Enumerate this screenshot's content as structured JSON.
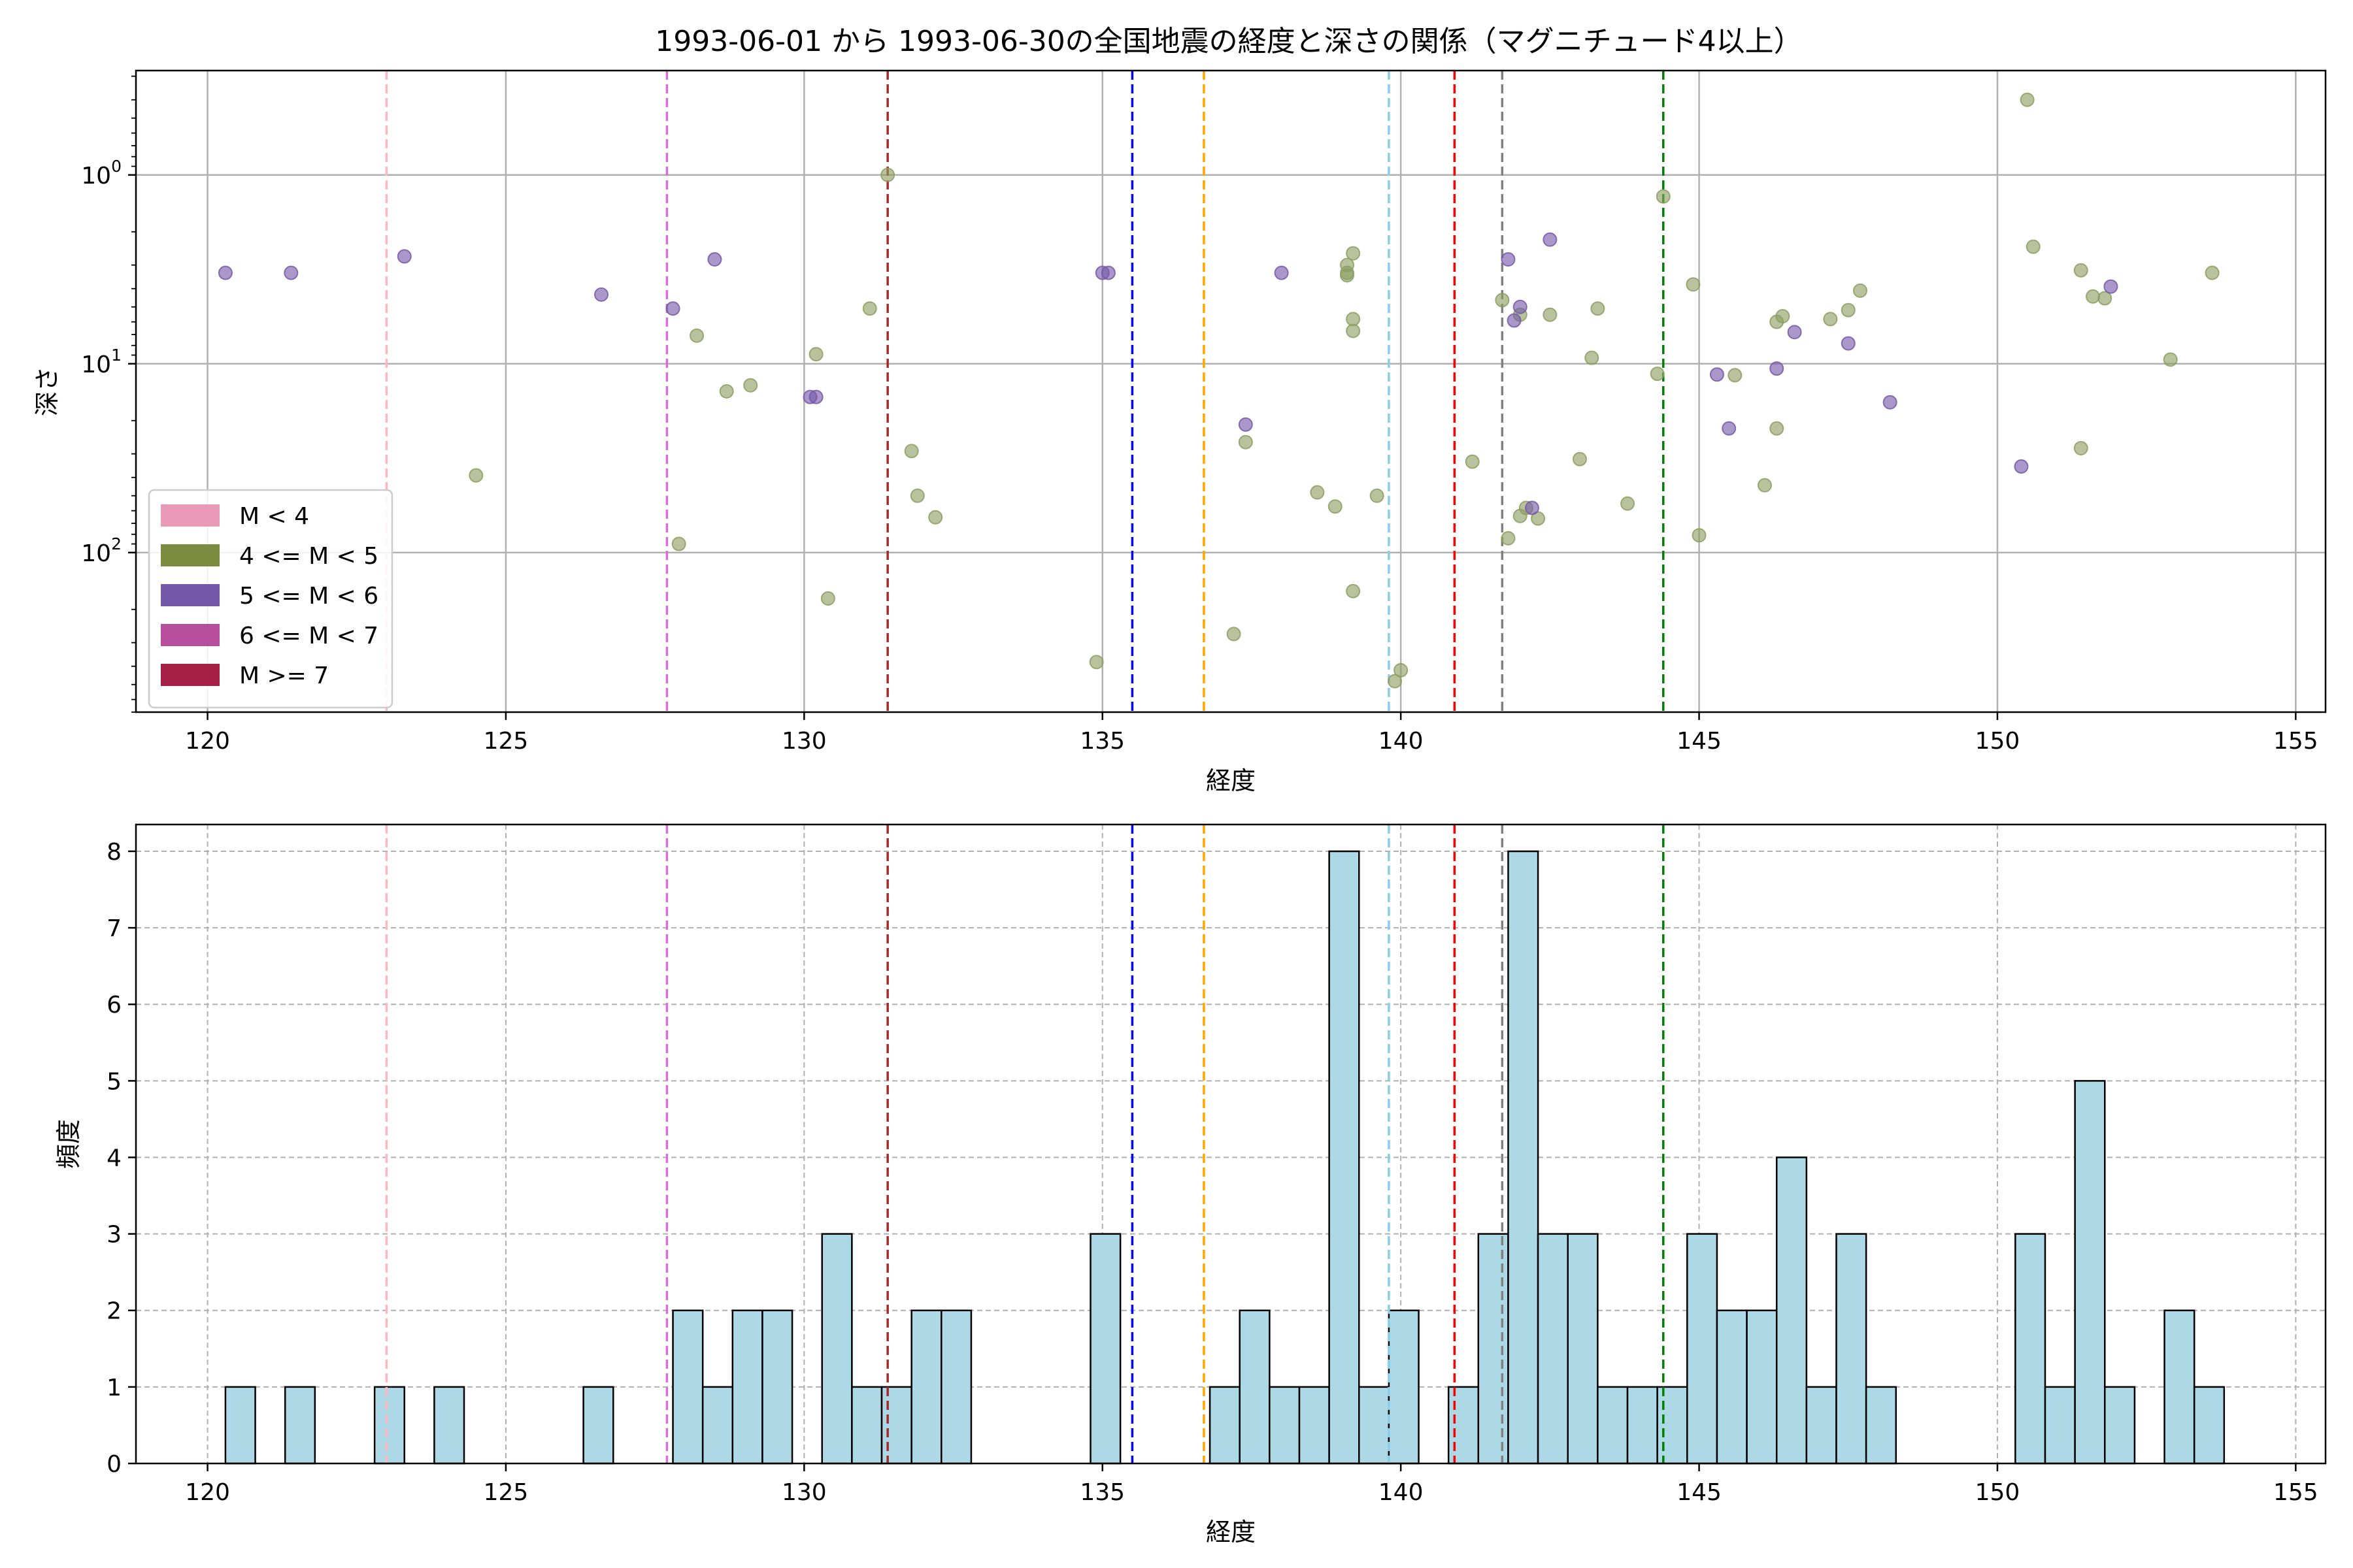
{
  "figure": {
    "title": "1993-06-01 から 1993-06-30の全国地震の経度と深さの関係（マグニチュード4以上）"
  },
  "chart_data": [
    {
      "type": "scatter",
      "xlabel": "経度",
      "ylabel": "深さ",
      "xlim": [
        118.8,
        155.5
      ],
      "ylim": [
        700,
        0.28
      ],
      "y_scale": "log",
      "y_inverted": true,
      "grid": true,
      "x_ticks": [
        120,
        125,
        130,
        135,
        140,
        145,
        150,
        155
      ],
      "y_ticks": [
        {
          "value": 1,
          "label_base": "10",
          "label_exp": "0"
        },
        {
          "value": 10,
          "label_base": "10",
          "label_exp": "1"
        },
        {
          "value": 100,
          "label_base": "10",
          "label_exp": "2"
        }
      ],
      "legend": {
        "placement": "lower-left",
        "entries": [
          {
            "label": "M < 4",
            "color": "#e89ab6"
          },
          {
            "label": "4 <= M < 5",
            "color": "#7b8b3f"
          },
          {
            "label": "5 <= M < 6",
            "color": "#7459a8"
          },
          {
            "label": "6 <= M < 7",
            "color": "#b84f9c"
          },
          {
            "label": "M >= 7",
            "color": "#a31f45"
          }
        ]
      },
      "vlines": [
        {
          "x": 123.0,
          "color": "#ffb6c1"
        },
        {
          "x": 127.7,
          "color": "#da70d6"
        },
        {
          "x": 131.4,
          "color": "#a52a2a"
        },
        {
          "x": 135.5,
          "color": "#0000ff"
        },
        {
          "x": 136.7,
          "color": "#ffa500"
        },
        {
          "x": 139.8,
          "color": "#87ceeb"
        },
        {
          "x": 140.9,
          "color": "#ff0000"
        },
        {
          "x": 141.7,
          "color": "#808080"
        },
        {
          "x": 144.4,
          "color": "#008000"
        }
      ],
      "series": [
        {
          "name": "4 <= M < 5",
          "color": "#8c9e62",
          "points": [
            [
              124.5,
              39
            ],
            [
              127.9,
              90
            ],
            [
              128.2,
              7.1
            ],
            [
              128.7,
              14
            ],
            [
              129.1,
              13
            ],
            [
              130.2,
              8.9
            ],
            [
              130.4,
              175
            ],
            [
              131.1,
              5.1
            ],
            [
              131.4,
              1.0
            ],
            [
              131.8,
              29
            ],
            [
              131.9,
              50
            ],
            [
              132.2,
              65
            ],
            [
              134.9,
              380
            ],
            [
              137.2,
              270
            ],
            [
              137.4,
              26
            ],
            [
              138.6,
              48
            ],
            [
              138.9,
              57
            ],
            [
              139.1,
              3.4
            ],
            [
              139.1,
              3.0
            ],
            [
              139.1,
              3.3
            ],
            [
              139.2,
              2.6
            ],
            [
              139.2,
              5.8
            ],
            [
              139.2,
              6.7
            ],
            [
              139.2,
              160
            ],
            [
              139.6,
              50
            ],
            [
              139.9,
              480
            ],
            [
              140.0,
              420
            ],
            [
              141.2,
              33
            ],
            [
              141.7,
              4.6
            ],
            [
              141.8,
              84
            ],
            [
              142.0,
              64
            ],
            [
              142.0,
              5.5
            ],
            [
              142.1,
              58
            ],
            [
              142.3,
              66
            ],
            [
              142.5,
              5.5
            ],
            [
              143.0,
              32
            ],
            [
              143.2,
              9.3
            ],
            [
              143.3,
              5.1
            ],
            [
              143.8,
              55
            ],
            [
              144.3,
              11.3
            ],
            [
              144.4,
              1.3
            ],
            [
              144.9,
              3.8
            ],
            [
              145.0,
              81
            ],
            [
              145.6,
              11.5
            ],
            [
              146.1,
              44
            ],
            [
              146.3,
              22
            ],
            [
              146.3,
              6.0
            ],
            [
              146.4,
              5.6
            ],
            [
              147.2,
              5.8
            ],
            [
              147.5,
              5.2
            ],
            [
              147.7,
              4.1
            ],
            [
              150.5,
              0.4
            ],
            [
              150.6,
              2.4
            ],
            [
              151.4,
              3.2
            ],
            [
              151.4,
              28
            ],
            [
              151.6,
              4.4
            ],
            [
              151.8,
              4.5
            ],
            [
              152.9,
              9.5
            ],
            [
              153.6,
              3.3
            ]
          ]
        },
        {
          "name": "5 <= M < 6",
          "color": "#7459a8",
          "points": [
            [
              120.3,
              3.3
            ],
            [
              121.4,
              3.3
            ],
            [
              123.3,
              2.7
            ],
            [
              126.6,
              4.3
            ],
            [
              127.8,
              5.1
            ],
            [
              128.5,
              2.8
            ],
            [
              130.1,
              15
            ],
            [
              130.2,
              15
            ],
            [
              135.0,
              3.3
            ],
            [
              135.1,
              3.3
            ],
            [
              137.4,
              21
            ],
            [
              138.0,
              3.3
            ],
            [
              141.8,
              2.8
            ],
            [
              141.9,
              5.9
            ],
            [
              142.0,
              5.0
            ],
            [
              142.2,
              58
            ],
            [
              142.5,
              2.2
            ],
            [
              145.3,
              11.4
            ],
            [
              145.5,
              22
            ],
            [
              146.3,
              10.6
            ],
            [
              146.6,
              6.8
            ],
            [
              147.5,
              7.8
            ],
            [
              148.2,
              16
            ],
            [
              150.4,
              35
            ],
            [
              151.9,
              3.9
            ]
          ]
        }
      ]
    },
    {
      "type": "histogram",
      "xlabel": "経度",
      "ylabel": "頻度",
      "xlim": [
        118.8,
        155.5
      ],
      "ylim": [
        0,
        8.35
      ],
      "grid": true,
      "x_ticks": [
        120,
        125,
        130,
        135,
        140,
        145,
        150,
        155
      ],
      "y_ticks": [
        0,
        1,
        2,
        3,
        4,
        5,
        6,
        7,
        8
      ],
      "bar_color": "#add8e6",
      "edge_color": "#000000",
      "bin_start": 120.3,
      "bin_width": 0.5,
      "counts": [
        1,
        0,
        1,
        0,
        0,
        1,
        0,
        1,
        0,
        0,
        0,
        0,
        1,
        0,
        0,
        2,
        1,
        2,
        2,
        0,
        3,
        1,
        1,
        2,
        2,
        0,
        0,
        0,
        0,
        3,
        0,
        0,
        0,
        1,
        2,
        1,
        1,
        8,
        1,
        2,
        0,
        1,
        3,
        8,
        3,
        3,
        1,
        1,
        1,
        3,
        2,
        2,
        4,
        1,
        3,
        1,
        0,
        0,
        0,
        0,
        3,
        1,
        5,
        1,
        0,
        2,
        1
      ],
      "vlines": [
        {
          "x": 123.0,
          "color": "#ffb6c1"
        },
        {
          "x": 127.7,
          "color": "#da70d6"
        },
        {
          "x": 131.4,
          "color": "#a52a2a"
        },
        {
          "x": 135.5,
          "color": "#0000ff"
        },
        {
          "x": 136.7,
          "color": "#ffa500"
        },
        {
          "x": 139.8,
          "color": "#87ceeb"
        },
        {
          "x": 140.9,
          "color": "#ff0000"
        },
        {
          "x": 141.7,
          "color": "#808080"
        },
        {
          "x": 144.4,
          "color": "#008000"
        }
      ]
    }
  ]
}
